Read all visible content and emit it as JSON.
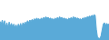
{
  "chart_data": {
    "type": "area",
    "values": [
      140,
      120,
      150,
      110,
      145,
      100,
      130,
      95,
      135,
      105,
      125,
      100,
      120,
      95,
      115,
      90,
      120,
      100,
      125,
      95,
      130,
      115,
      135,
      125,
      145,
      130,
      150,
      140,
      155,
      145,
      160,
      150,
      165,
      155,
      160,
      150,
      165,
      155,
      170,
      160,
      175,
      165,
      170,
      160,
      165,
      155,
      160,
      150,
      165,
      155,
      170,
      160,
      175,
      165,
      170,
      160,
      165,
      155,
      160,
      150,
      165,
      155,
      170,
      160,
      175,
      165,
      170,
      160,
      165,
      155,
      160,
      150,
      165,
      160,
      170,
      165,
      175,
      170,
      180,
      175,
      185,
      180,
      190,
      185,
      80,
      20,
      15,
      10,
      30,
      80,
      120,
      130,
      110,
      125,
      115,
      120
    ],
    "color": "#5aaad8",
    "ylim": [
      0,
      300
    ],
    "grid": false,
    "tick_labels": false
  }
}
